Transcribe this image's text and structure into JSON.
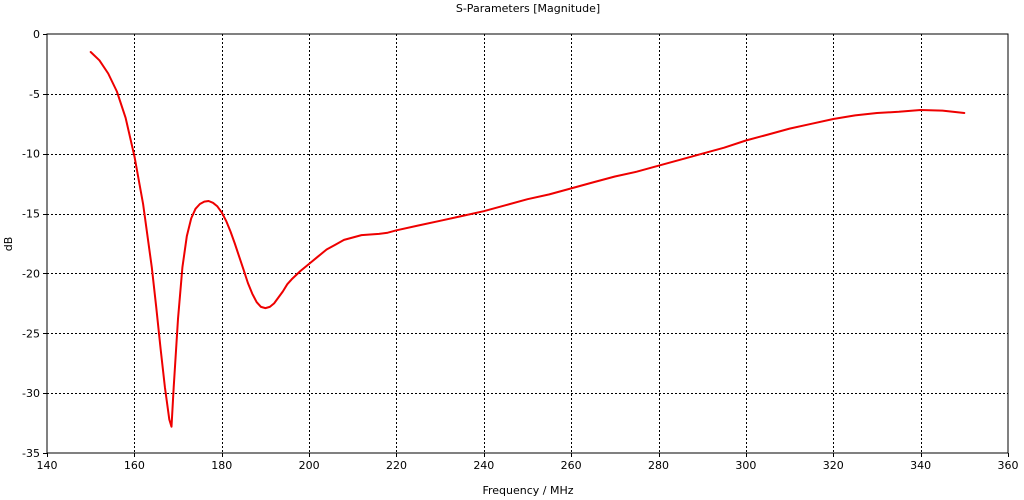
{
  "chart_data": {
    "type": "line",
    "title": "S-Parameters [Magnitude]",
    "xlabel": "Frequency / MHz",
    "ylabel": "dB",
    "xlim": [
      140,
      360
    ],
    "ylim": [
      -35,
      0
    ],
    "x_ticks": [
      140,
      160,
      180,
      200,
      220,
      240,
      260,
      280,
      300,
      320,
      340,
      360
    ],
    "y_ticks": [
      0,
      -5,
      -10,
      -15,
      -20,
      -25,
      -30,
      -35
    ],
    "grid": true,
    "series": [
      {
        "color": "#ee0000",
        "x": [
          150,
          152,
          154,
          156,
          158,
          160,
          162,
          164,
          165,
          166,
          167,
          168,
          168.5,
          169,
          170,
          171,
          172,
          173,
          174,
          175,
          176,
          177,
          178,
          179,
          180,
          181,
          182,
          183,
          184,
          185,
          186,
          187,
          188,
          189,
          190,
          191,
          192,
          193,
          194,
          195,
          196,
          198,
          200,
          202,
          204,
          206,
          208,
          210,
          212,
          214,
          216,
          218,
          220,
          225,
          230,
          235,
          240,
          245,
          250,
          255,
          260,
          265,
          270,
          275,
          280,
          285,
          290,
          295,
          300,
          305,
          310,
          315,
          320,
          325,
          330,
          335,
          340,
          345,
          350
        ],
        "y": [
          -1.5,
          -2.2,
          -3.3,
          -4.8,
          -7.0,
          -10.2,
          -14.2,
          -19.5,
          -22.8,
          -26.3,
          -29.5,
          -32.2,
          -32.8,
          -29.5,
          -23.8,
          -19.5,
          -16.9,
          -15.4,
          -14.6,
          -14.2,
          -14.0,
          -13.95,
          -14.1,
          -14.4,
          -14.9,
          -15.6,
          -16.5,
          -17.5,
          -18.6,
          -19.7,
          -20.8,
          -21.7,
          -22.4,
          -22.8,
          -22.9,
          -22.8,
          -22.5,
          -22.0,
          -21.5,
          -20.9,
          -20.5,
          -19.8,
          -19.2,
          -18.6,
          -18.0,
          -17.6,
          -17.2,
          -17.0,
          -16.8,
          -16.75,
          -16.7,
          -16.6,
          -16.4,
          -16.0,
          -15.6,
          -15.2,
          -14.8,
          -14.3,
          -13.8,
          -13.4,
          -12.9,
          -12.4,
          -11.9,
          -11.5,
          -11.0,
          -10.5,
          -10.0,
          -9.5,
          -8.9,
          -8.4,
          -7.9,
          -7.5,
          -7.1,
          -6.8,
          -6.6,
          -6.5,
          -6.35,
          -6.4,
          -6.6
        ]
      }
    ]
  }
}
